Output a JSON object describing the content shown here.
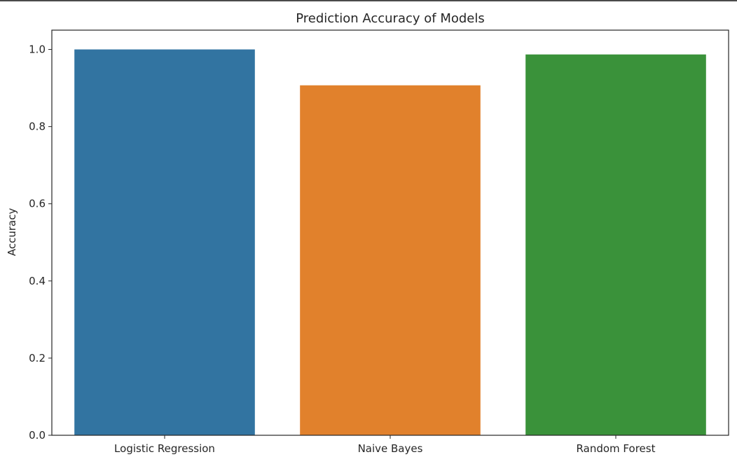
{
  "chart_data": {
    "type": "bar",
    "title": "Prediction Accuracy of Models",
    "xlabel": "",
    "ylabel": "Accuracy",
    "categories": [
      "Logistic Regression",
      "Naive Bayes",
      "Random Forest"
    ],
    "values": [
      1.0,
      0.907,
      0.987
    ],
    "colors": [
      "#3274a1",
      "#e1812c",
      "#3a923a"
    ],
    "ylim": [
      0,
      1.05
    ],
    "yticks": [
      "0.0",
      "0.2",
      "0.4",
      "0.6",
      "0.8",
      "1.0"
    ],
    "grid": false
  }
}
